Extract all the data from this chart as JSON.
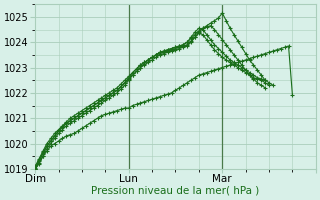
{
  "title": "",
  "xlabel": "Pression niveau de la mer( hPa )",
  "ylabel": "",
  "bg_color": "#d8f0e8",
  "plot_bg_color": "#d8f0e8",
  "grid_color": "#aacebb",
  "line_color": "#1a6e1a",
  "marker_color": "#1a6e1a",
  "ylim": [
    1019,
    1025.5
  ],
  "xlim": [
    0,
    72
  ],
  "yticks": [
    1019,
    1020,
    1021,
    1022,
    1023,
    1024,
    1025
  ],
  "day_ticks": [
    0,
    24,
    48,
    72
  ],
  "day_labels": [
    "Dim",
    "Lun",
    "Mar",
    ""
  ],
  "series": [
    {
      "x": [
        0,
        1,
        2,
        3,
        4,
        5,
        6,
        7,
        8,
        9,
        10,
        11,
        12,
        13,
        14,
        15,
        16,
        17,
        18,
        19,
        20,
        21,
        22,
        23,
        24,
        25,
        26,
        27,
        28,
        29,
        30,
        31,
        32,
        33,
        34,
        35,
        36,
        37,
        38,
        39,
        40,
        41,
        42,
        43,
        44,
        45,
        46,
        47,
        48,
        49,
        50,
        51,
        52,
        53,
        54,
        55,
        56,
        57,
        58,
        59,
        60,
        61,
        62,
        63,
        64,
        65,
        66
      ],
      "y": [
        1019.0,
        1019.2,
        1019.5,
        1019.7,
        1019.9,
        1020.0,
        1020.1,
        1020.2,
        1020.3,
        1020.35,
        1020.4,
        1020.5,
        1020.6,
        1020.7,
        1020.8,
        1020.9,
        1021.0,
        1021.1,
        1021.15,
        1021.2,
        1021.25,
        1021.3,
        1021.35,
        1021.4,
        1021.4,
        1021.5,
        1021.55,
        1021.6,
        1021.65,
        1021.7,
        1021.75,
        1021.8,
        1021.85,
        1021.9,
        1021.95,
        1022.0,
        1022.1,
        1022.2,
        1022.3,
        1022.4,
        1022.5,
        1022.6,
        1022.7,
        1022.75,
        1022.8,
        1022.85,
        1022.9,
        1022.95,
        1023.0,
        1023.05,
        1023.1,
        1023.15,
        1023.2,
        1023.25,
        1023.3,
        1023.35,
        1023.4,
        1023.45,
        1023.5,
        1023.55,
        1023.6,
        1023.65,
        1023.7,
        1023.75,
        1023.8,
        1023.85,
        1021.9
      ]
    },
    {
      "x": [
        0,
        1,
        2,
        3,
        4,
        5,
        6,
        7,
        8,
        9,
        10,
        11,
        12,
        13,
        14,
        15,
        16,
        17,
        18,
        19,
        20,
        21,
        22,
        23,
        24,
        25,
        26,
        27,
        28,
        29,
        30,
        31,
        32,
        33,
        34,
        35,
        36,
        37,
        38,
        39,
        40,
        41,
        42,
        43,
        44,
        45,
        46,
        47,
        48,
        49,
        50,
        51,
        52,
        53,
        54,
        55,
        56,
        57,
        58,
        59,
        60
      ],
      "y": [
        1019.0,
        1019.25,
        1019.5,
        1019.8,
        1020.0,
        1020.2,
        1020.4,
        1020.55,
        1020.7,
        1020.8,
        1020.9,
        1021.0,
        1021.1,
        1021.2,
        1021.3,
        1021.4,
        1021.5,
        1021.6,
        1021.7,
        1021.8,
        1021.9,
        1022.0,
        1022.15,
        1022.3,
        1022.5,
        1022.7,
        1022.85,
        1023.0,
        1023.1,
        1023.2,
        1023.3,
        1023.4,
        1023.5,
        1023.55,
        1023.6,
        1023.65,
        1023.7,
        1023.75,
        1023.8,
        1023.85,
        1024.0,
        1024.2,
        1024.35,
        1024.3,
        1024.1,
        1023.9,
        1023.7,
        1023.55,
        1023.4,
        1023.3,
        1023.2,
        1023.1,
        1023.0,
        1022.9,
        1022.8,
        1022.7,
        1022.6,
        1022.55,
        1022.5,
        1022.4,
        1022.3
      ]
    },
    {
      "x": [
        0,
        1,
        2,
        3,
        4,
        5,
        6,
        7,
        8,
        9,
        10,
        11,
        12,
        13,
        14,
        15,
        16,
        17,
        18,
        19,
        20,
        21,
        22,
        23,
        24,
        25,
        26,
        27,
        28,
        29,
        30,
        31,
        32,
        33,
        34,
        35,
        36,
        37,
        38,
        39,
        40,
        41,
        42,
        43,
        44,
        45,
        46,
        47,
        48,
        49,
        50,
        51,
        52,
        53,
        54,
        55,
        56,
        57,
        58,
        59,
        60,
        61
      ],
      "y": [
        1019.0,
        1019.3,
        1019.6,
        1019.9,
        1020.1,
        1020.3,
        1020.5,
        1020.65,
        1020.8,
        1020.9,
        1021.0,
        1021.1,
        1021.2,
        1021.3,
        1021.4,
        1021.5,
        1021.6,
        1021.7,
        1021.8,
        1021.9,
        1022.0,
        1022.1,
        1022.25,
        1022.4,
        1022.6,
        1022.8,
        1022.95,
        1023.1,
        1023.2,
        1023.3,
        1023.4,
        1023.5,
        1023.6,
        1023.65,
        1023.7,
        1023.75,
        1023.8,
        1023.85,
        1023.9,
        1024.0,
        1024.2,
        1024.4,
        1024.55,
        1024.5,
        1024.3,
        1024.1,
        1023.9,
        1023.75,
        1023.6,
        1023.45,
        1023.3,
        1023.2,
        1023.1,
        1023.0,
        1022.9,
        1022.8,
        1022.7,
        1022.6,
        1022.55,
        1022.5,
        1022.4,
        1022.3
      ]
    },
    {
      "x": [
        0,
        1,
        2,
        3,
        4,
        5,
        6,
        7,
        8,
        9,
        10,
        11,
        12,
        13,
        14,
        15,
        16,
        17,
        18,
        19,
        20,
        21,
        22,
        23,
        24,
        25,
        26,
        27,
        28,
        29,
        30,
        31,
        32,
        33,
        34,
        35,
        36,
        37,
        38,
        39,
        40,
        41,
        42,
        43,
        44,
        45,
        46,
        47,
        48,
        49,
        50,
        51,
        52,
        53,
        54,
        55,
        56,
        57,
        58,
        59
      ],
      "y": [
        1019.1,
        1019.4,
        1019.7,
        1020.0,
        1020.2,
        1020.4,
        1020.55,
        1020.7,
        1020.85,
        1021.0,
        1021.1,
        1021.2,
        1021.3,
        1021.4,
        1021.5,
        1021.6,
        1021.7,
        1021.8,
        1021.9,
        1022.0,
        1022.1,
        1022.2,
        1022.35,
        1022.5,
        1022.65,
        1022.8,
        1022.95,
        1023.1,
        1023.2,
        1023.3,
        1023.4,
        1023.5,
        1023.6,
        1023.65,
        1023.7,
        1023.75,
        1023.8,
        1023.85,
        1023.9,
        1024.0,
        1024.15,
        1024.3,
        1024.45,
        1024.55,
        1024.6,
        1024.65,
        1024.5,
        1024.3,
        1024.1,
        1023.9,
        1023.7,
        1023.5,
        1023.3,
        1023.1,
        1022.9,
        1022.7,
        1022.55,
        1022.4,
        1022.3,
        1022.2
      ]
    },
    {
      "x": [
        0,
        1,
        2,
        3,
        4,
        5,
        6,
        7,
        8,
        9,
        10,
        11,
        12,
        13,
        14,
        15,
        16,
        17,
        18,
        19,
        20,
        21,
        22,
        23,
        24,
        25,
        26,
        27,
        28,
        29,
        30,
        31,
        32,
        33,
        34,
        35,
        36,
        37,
        38,
        39,
        40,
        41,
        42,
        43,
        44,
        45,
        46,
        47,
        48,
        49,
        50,
        51,
        52,
        53,
        54,
        55,
        56,
        57,
        58,
        59
      ],
      "y": [
        1019.05,
        1019.35,
        1019.65,
        1019.9,
        1020.1,
        1020.3,
        1020.5,
        1020.65,
        1020.8,
        1020.9,
        1021.0,
        1021.1,
        1021.2,
        1021.3,
        1021.4,
        1021.5,
        1021.6,
        1021.7,
        1021.8,
        1021.9,
        1022.0,
        1022.1,
        1022.25,
        1022.4,
        1022.55,
        1022.7,
        1022.85,
        1023.0,
        1023.15,
        1023.3,
        1023.4,
        1023.5,
        1023.55,
        1023.6,
        1023.65,
        1023.7,
        1023.75,
        1023.8,
        1023.85,
        1023.9,
        1024.05,
        1024.2,
        1024.4,
        1024.55,
        1024.65,
        1024.75,
        1024.85,
        1024.95,
        1025.15,
        1024.85,
        1024.55,
        1024.3,
        1024.05,
        1023.8,
        1023.55,
        1023.3,
        1023.1,
        1022.9,
        1022.7,
        1022.5
      ]
    }
  ]
}
